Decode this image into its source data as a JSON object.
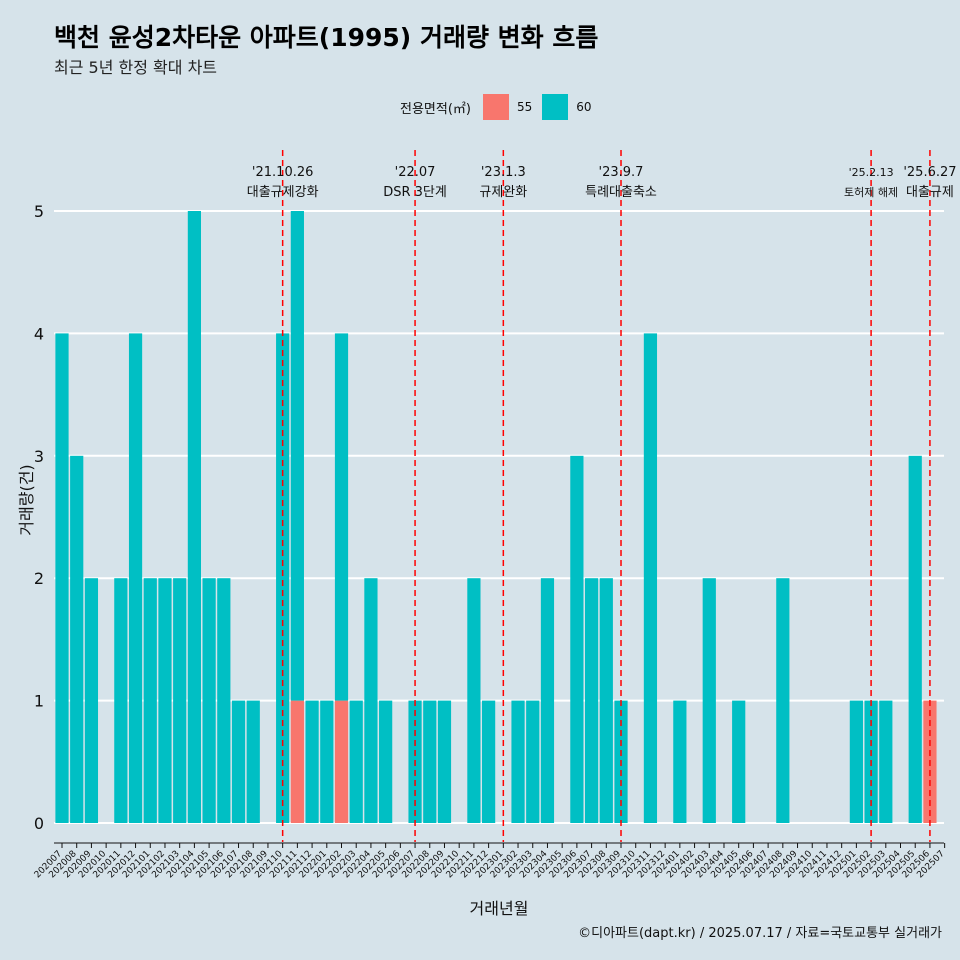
{
  "title": "백천 윤성2차타운 아파트(1995) 거래량 변화 흐름",
  "subtitle": "최근 5년 한정 확대 차트",
  "caption": "©디아파트(dapt.kr) / 2025.07.17 / 자료=국토교통부 실거래가",
  "colors": {
    "background": "#d6e3ea",
    "s55": "#f8766d",
    "s60": "#00bfc4",
    "event_line": "#ff0000"
  },
  "chart_data": {
    "type": "bar",
    "stacked": true,
    "xlabel": "거래년월",
    "ylabel": "거래량(건)",
    "ylim": [
      0,
      5
    ],
    "yticks": [
      0,
      1,
      2,
      3,
      4,
      5
    ],
    "grid": true,
    "legend": {
      "title": "전용면적(㎡)",
      "position": "top"
    },
    "categories": [
      "202007",
      "202008",
      "202009",
      "202010",
      "202011",
      "202012",
      "202101",
      "202102",
      "202103",
      "202104",
      "202105",
      "202106",
      "202107",
      "202108",
      "202109",
      "202110",
      "202111",
      "202112",
      "202201",
      "202202",
      "202203",
      "202204",
      "202205",
      "202206",
      "202207",
      "202208",
      "202209",
      "202210",
      "202211",
      "202212",
      "202301",
      "202302",
      "202303",
      "202304",
      "202305",
      "202306",
      "202307",
      "202308",
      "202309",
      "202310",
      "202311",
      "202312",
      "202401",
      "202402",
      "202403",
      "202404",
      "202405",
      "202406",
      "202407",
      "202408",
      "202409",
      "202410",
      "202411",
      "202412",
      "202501",
      "202502",
      "202503",
      "202504",
      "202505",
      "202506",
      "202507"
    ],
    "series": [
      {
        "name": "55",
        "values": [
          0,
          0,
          0,
          0,
          0,
          0,
          0,
          0,
          0,
          0,
          0,
          0,
          0,
          0,
          0,
          0,
          1,
          0,
          0,
          1,
          0,
          0,
          0,
          0,
          0,
          0,
          0,
          0,
          0,
          0,
          0,
          0,
          0,
          0,
          0,
          0,
          0,
          0,
          0,
          0,
          0,
          0,
          0,
          0,
          0,
          0,
          0,
          0,
          0,
          0,
          0,
          0,
          0,
          0,
          0,
          0,
          0,
          0,
          0,
          1,
          0
        ]
      },
      {
        "name": "60",
        "values": [
          4,
          3,
          2,
          0,
          2,
          4,
          2,
          2,
          2,
          5,
          2,
          2,
          1,
          1,
          0,
          4,
          4,
          1,
          1,
          3,
          1,
          2,
          1,
          0,
          1,
          1,
          1,
          0,
          2,
          1,
          0,
          1,
          1,
          2,
          0,
          3,
          2,
          2,
          1,
          0,
          4,
          0,
          1,
          0,
          2,
          0,
          1,
          0,
          0,
          2,
          0,
          0,
          0,
          0,
          1,
          1,
          1,
          0,
          3,
          0,
          0
        ]
      }
    ],
    "annotations": [
      {
        "date": "'21.10.26",
        "label": "대출규제강화",
        "month": "202110"
      },
      {
        "date": "'22.07",
        "label": "DSR 3단계",
        "month": "202207"
      },
      {
        "date": "'23.1.3",
        "label": "규제완화",
        "month": "202301"
      },
      {
        "date": "'23.9.7",
        "label": "특례대출축소",
        "month": "202309"
      },
      {
        "date": "'25.2.13",
        "label": "토허제 해제",
        "month": "202502"
      },
      {
        "date": "'25.6.27",
        "label": "대출규제",
        "month": "202506"
      }
    ]
  }
}
